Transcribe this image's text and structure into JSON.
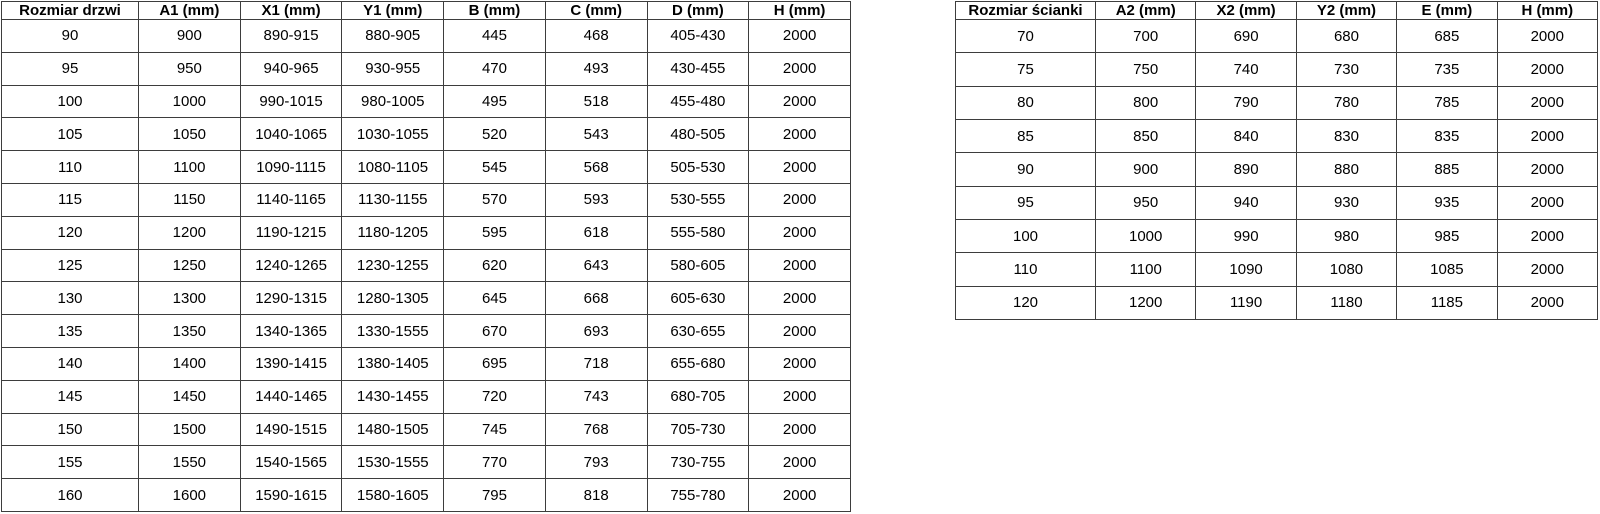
{
  "colors": {
    "border": "#3d3d3d",
    "text": "#000000",
    "background": "#ffffff"
  },
  "doors_table": {
    "name": "door-sizes-table",
    "headers": [
      "Rozmiar drzwi",
      "A1 (mm)",
      "X1 (mm)",
      "Y1 (mm)",
      "B (mm)",
      "C (mm)",
      "D (mm)",
      "H (mm)"
    ],
    "rows": [
      [
        "90",
        "900",
        "890-915",
        "880-905",
        "445",
        "468",
        "405-430",
        "2000"
      ],
      [
        "95",
        "950",
        "940-965",
        "930-955",
        "470",
        "493",
        "430-455",
        "2000"
      ],
      [
        "100",
        "1000",
        "990-1015",
        "980-1005",
        "495",
        "518",
        "455-480",
        "2000"
      ],
      [
        "105",
        "1050",
        "1040-1065",
        "1030-1055",
        "520",
        "543",
        "480-505",
        "2000"
      ],
      [
        "110",
        "1100",
        "1090-1115",
        "1080-1105",
        "545",
        "568",
        "505-530",
        "2000"
      ],
      [
        "115",
        "1150",
        "1140-1165",
        "1130-1155",
        "570",
        "593",
        "530-555",
        "2000"
      ],
      [
        "120",
        "1200",
        "1190-1215",
        "1180-1205",
        "595",
        "618",
        "555-580",
        "2000"
      ],
      [
        "125",
        "1250",
        "1240-1265",
        "1230-1255",
        "620",
        "643",
        "580-605",
        "2000"
      ],
      [
        "130",
        "1300",
        "1290-1315",
        "1280-1305",
        "645",
        "668",
        "605-630",
        "2000"
      ],
      [
        "135",
        "1350",
        "1340-1365",
        "1330-1555",
        "670",
        "693",
        "630-655",
        "2000"
      ],
      [
        "140",
        "1400",
        "1390-1415",
        "1380-1405",
        "695",
        "718",
        "655-680",
        "2000"
      ],
      [
        "145",
        "1450",
        "1440-1465",
        "1430-1455",
        "720",
        "743",
        "680-705",
        "2000"
      ],
      [
        "150",
        "1500",
        "1490-1515",
        "1480-1505",
        "745",
        "768",
        "705-730",
        "2000"
      ],
      [
        "155",
        "1550",
        "1540-1565",
        "1530-1555",
        "770",
        "793",
        "730-755",
        "2000"
      ],
      [
        "160",
        "1600",
        "1590-1615",
        "1580-1605",
        "795",
        "818",
        "755-780",
        "2000"
      ]
    ]
  },
  "walls_table": {
    "name": "wall-sizes-table",
    "headers": [
      "Rozmiar ścianki",
      "A2 (mm)",
      "X2 (mm)",
      "Y2 (mm)",
      "E (mm)",
      "H (mm)"
    ],
    "rows": [
      [
        "70",
        "700",
        "690",
        "680",
        "685",
        "2000"
      ],
      [
        "75",
        "750",
        "740",
        "730",
        "735",
        "2000"
      ],
      [
        "80",
        "800",
        "790",
        "780",
        "785",
        "2000"
      ],
      [
        "85",
        "850",
        "840",
        "830",
        "835",
        "2000"
      ],
      [
        "90",
        "900",
        "890",
        "880",
        "885",
        "2000"
      ],
      [
        "95",
        "950",
        "940",
        "930",
        "935",
        "2000"
      ],
      [
        "100",
        "1000",
        "990",
        "980",
        "985",
        "2000"
      ],
      [
        "110",
        "1100",
        "1090",
        "1080",
        "1085",
        "2000"
      ],
      [
        "120",
        "1200",
        "1190",
        "1180",
        "1185",
        "2000"
      ]
    ]
  }
}
